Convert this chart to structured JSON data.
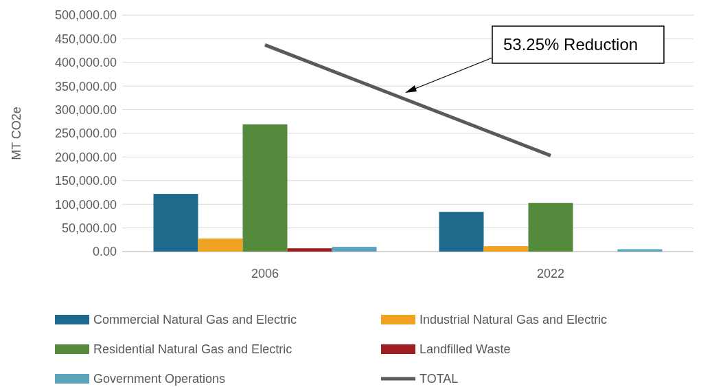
{
  "chart_data": {
    "type": "bar",
    "ylabel": "MT CO2e",
    "categories": [
      "2006",
      "2022"
    ],
    "series": [
      {
        "name": "Commercial Natural Gas and Electric",
        "color": "#1f6a8c",
        "values": [
          122000,
          84000
        ]
      },
      {
        "name": "Industrial Natural Gas and Electric",
        "color": "#f0a320",
        "values": [
          27500,
          11500
        ]
      },
      {
        "name": "Residential Natural Gas and Electric",
        "color": "#548a3b",
        "values": [
          269000,
          103000
        ]
      },
      {
        "name": "Landfilled Waste",
        "color": "#a11c1f",
        "values": [
          7000,
          0
        ]
      },
      {
        "name": "Government Operations",
        "color": "#5ba3bb",
        "values": [
          10000,
          5000
        ]
      },
      {
        "name": "TOTAL",
        "type": "line",
        "color": "#5a5a5a",
        "values": [
          437000,
          203000
        ]
      }
    ],
    "ylim": [
      0,
      500000
    ],
    "yticks": [
      {
        "value": 0,
        "label": "0.00"
      },
      {
        "value": 50000,
        "label": "50,000.00"
      },
      {
        "value": 100000,
        "label": "100,000.00"
      },
      {
        "value": 150000,
        "label": "150,000.00"
      },
      {
        "value": 200000,
        "label": "200,000.00"
      },
      {
        "value": 250000,
        "label": "250,000.00"
      },
      {
        "value": 300000,
        "label": "300,000.00"
      },
      {
        "value": 350000,
        "label": "350,000.00"
      },
      {
        "value": 400000,
        "label": "400,000.00"
      },
      {
        "value": 450000,
        "label": "450,000.00"
      },
      {
        "value": 500000,
        "label": "500,000.00"
      }
    ],
    "grid": "y",
    "legend": "bottom",
    "marker": "none",
    "annotations": [
      "53.25% Reduction"
    ]
  }
}
